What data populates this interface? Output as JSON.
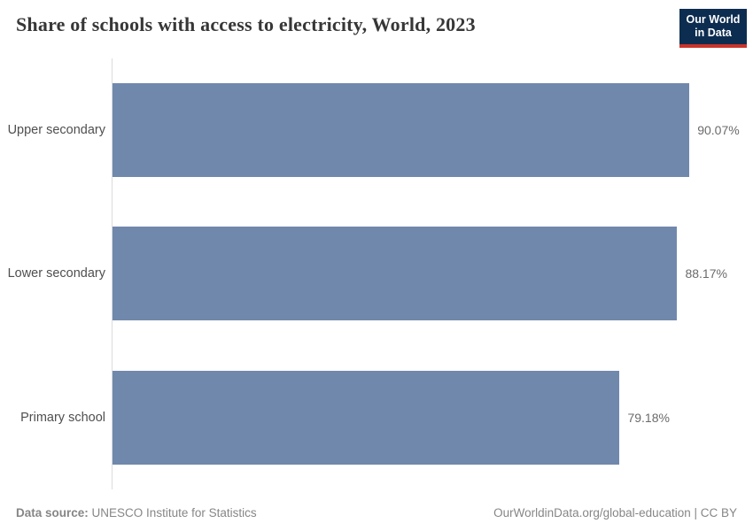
{
  "header": {
    "title": "Share of schools with access to electricity, World, 2023",
    "logo": {
      "line1": "Our World",
      "line2": "in Data",
      "bg_color": "#0d2d50",
      "accent_color": "#c9342a"
    }
  },
  "chart_data": {
    "type": "bar",
    "orientation": "horizontal",
    "title": "Share of schools with access to electricity, World, 2023",
    "categories": [
      "Upper secondary",
      "Lower secondary",
      "Primary school"
    ],
    "values": [
      90.07,
      88.17,
      79.18
    ],
    "value_labels": [
      "90.07%",
      "88.17%",
      "79.18%"
    ],
    "xlabel": "",
    "ylabel": "",
    "xlim": [
      0,
      100
    ],
    "grid": false,
    "legend": false,
    "bar_color": "#7188ad",
    "axis_line_color": "#dcdcdc"
  },
  "footer": {
    "data_source_label": "Data source:",
    "data_source_value": "UNESCO Institute for Statistics",
    "attribution": "OurWorldinData.org/global-education | CC BY"
  }
}
